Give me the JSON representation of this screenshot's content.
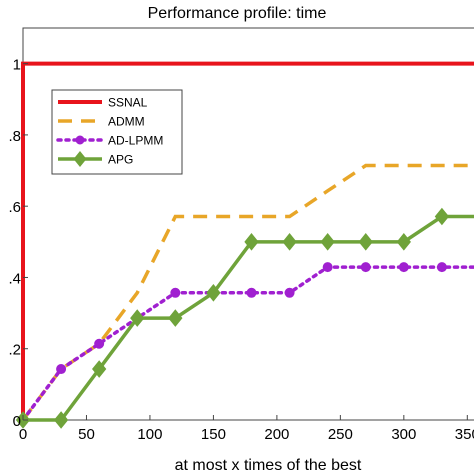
{
  "chart_data": {
    "type": "line",
    "title": "Performance profile: time",
    "xlabel": "at most x times of the best",
    "ylabel": "",
    "xlim": [
      0,
      360
    ],
    "ylim": [
      0,
      1.1
    ],
    "xticks": [
      0,
      50,
      100,
      150,
      200,
      250,
      300,
      350
    ],
    "xtick_labels": [
      "0",
      "50",
      "100",
      "150",
      "200",
      "250",
      "300",
      "350"
    ],
    "yticks": [
      0,
      0.2,
      0.4,
      0.6,
      0.8,
      1
    ],
    "ytick_labels": [
      "0",
      ".2",
      ".4",
      ".6",
      ".8",
      "1"
    ],
    "grid": false,
    "legend_position": "top-left",
    "series": [
      {
        "name": "SSNAL",
        "color": "#e8141c",
        "style": "solid",
        "marker": "none",
        "x": [
          0,
          0,
          360
        ],
        "y": [
          0,
          1,
          1
        ]
      },
      {
        "name": "ADMM",
        "color": "#e8a628",
        "style": "dashed",
        "marker": "none",
        "x": [
          0,
          30,
          60,
          90,
          120,
          150,
          180,
          210,
          240,
          270,
          300,
          330,
          360
        ],
        "y": [
          0,
          0.143,
          0.214,
          0.357,
          0.571,
          0.571,
          0.571,
          0.571,
          0.643,
          0.714,
          0.714,
          0.714,
          0.714
        ]
      },
      {
        "name": "AD-LPMM",
        "color": "#a020d0",
        "style": "dotted",
        "marker": "circle",
        "x": [
          0,
          30,
          60,
          90,
          120,
          150,
          180,
          210,
          240,
          270,
          300,
          330,
          360
        ],
        "y": [
          0,
          0.143,
          0.214,
          0.286,
          0.357,
          0.357,
          0.357,
          0.357,
          0.429,
          0.429,
          0.429,
          0.429,
          0.429
        ]
      },
      {
        "name": "APG",
        "color": "#6fa33a",
        "style": "solid",
        "marker": "diamond",
        "x": [
          0,
          30,
          60,
          90,
          120,
          150,
          180,
          210,
          240,
          270,
          300,
          330,
          360
        ],
        "y": [
          0,
          0,
          0.143,
          0.286,
          0.286,
          0.357,
          0.5,
          0.5,
          0.5,
          0.5,
          0.5,
          0.571,
          0.571
        ]
      }
    ]
  }
}
